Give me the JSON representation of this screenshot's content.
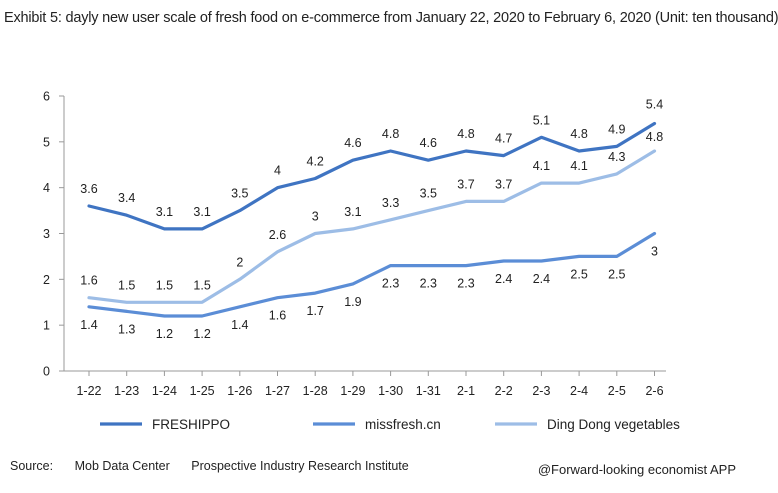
{
  "title": "Exhibit 5: dayly new user scale of fresh food on e-commerce from January 22, 2020 to February 6, 2020 (Unit: ten thousand)",
  "source": {
    "label": "Source:",
    "items": [
      "Mob Data Center",
      "Prospective Industry Research Institute"
    ]
  },
  "credit": "@Forward-looking economist APP",
  "colors": {
    "freshippo": "#3f74c2",
    "missfresh": "#5b8dd6",
    "dingdong": "#9dbde6",
    "axis": "#999999"
  },
  "chart_data": {
    "type": "line",
    "title": "dayly new user scale of fresh food on e-commerce",
    "xlabel": "",
    "ylabel": "",
    "ylim": [
      0,
      6
    ],
    "yticks": [
      0,
      1,
      2,
      3,
      4,
      5,
      6
    ],
    "grid": false,
    "legend_position": "bottom",
    "categories": [
      "1-22",
      "1-23",
      "1-24",
      "1-25",
      "1-26",
      "1-27",
      "1-28",
      "1-29",
      "1-30",
      "1-31",
      "2-1",
      "2-2",
      "2-3",
      "2-4",
      "2-5",
      "2-6"
    ],
    "series": [
      {
        "name": "FRESHIPPO",
        "values": [
          3.6,
          3.4,
          3.1,
          3.1,
          3.5,
          4,
          4.2,
          4.6,
          4.8,
          4.6,
          4.8,
          4.7,
          5.1,
          4.8,
          4.9,
          5.4
        ]
      },
      {
        "name": "missfresh.cn",
        "values": [
          1.4,
          1.3,
          1.2,
          1.2,
          1.4,
          1.6,
          1.7,
          1.9,
          2.3,
          2.3,
          2.3,
          2.4,
          2.4,
          2.5,
          2.5,
          3
        ]
      },
      {
        "name": "Ding Dong vegetables",
        "values": [
          1.6,
          1.5,
          1.5,
          1.5,
          2,
          2.6,
          3,
          3.1,
          3.3,
          3.5,
          3.7,
          3.7,
          4.1,
          4.1,
          4.3,
          4.8
        ]
      }
    ]
  }
}
